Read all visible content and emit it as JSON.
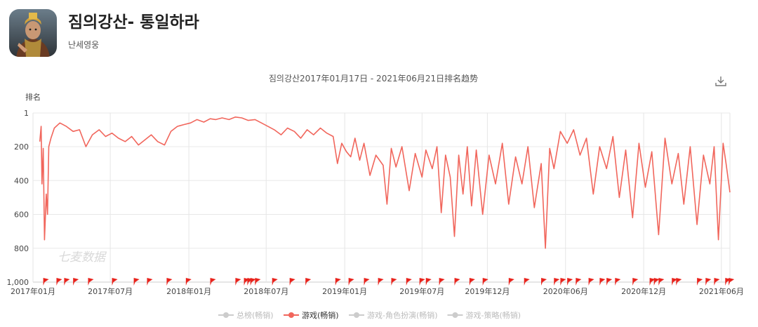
{
  "app": {
    "icon": "warrior-portrait-icon",
    "title": "짐의강산- 통일하라",
    "developer": "난세영웅"
  },
  "toolbar": {
    "download_icon": "download-icon"
  },
  "chart_data": {
    "type": "line",
    "title": "짐의강산2017年01月17日 - 2021年06月21日排名趋势",
    "ylabel": "排名",
    "xlabel": "",
    "y_inverted": true,
    "ylim": [
      1,
      1000
    ],
    "yticks": [
      "1",
      "200",
      "400",
      "600",
      "800",
      "1,000"
    ],
    "xticks": [
      "2017年01月",
      "2017年07月",
      "2018年01月",
      "2018年07月",
      "2019年01月",
      "2019年07月",
      "2019年12月",
      "2020年06月",
      "2020年12月",
      "2021年06月"
    ],
    "xtick_dates": [
      "2017-01-01",
      "2017-07-01",
      "2018-01-01",
      "2018-07-01",
      "2019-01-01",
      "2019-07-01",
      "2019-12-01",
      "2020-06-01",
      "2020-12-01",
      "2021-06-01"
    ],
    "date_range": [
      "2017-01-17",
      "2021-06-21"
    ],
    "grid": true,
    "watermark": "七麦数据",
    "legend_position": "bottom",
    "legend": [
      {
        "name": "总榜(畅销)",
        "active": false,
        "color": "#cccccc"
      },
      {
        "name": "游戏(畅销)",
        "active": true,
        "color": "#f1665c"
      },
      {
        "name": "游戏-角色扮演(畅销)",
        "active": false,
        "color": "#cccccc"
      },
      {
        "name": "游戏-策略(畅销)",
        "active": false,
        "color": "#cccccc"
      }
    ],
    "series": [
      {
        "name": "游戏(畅销)",
        "color": "#f1665c",
        "points": [
          [
            "2017-01-17",
            170
          ],
          [
            "2017-01-20",
            80
          ],
          [
            "2017-01-22",
            420
          ],
          [
            "2017-01-25",
            210
          ],
          [
            "2017-01-28",
            750
          ],
          [
            "2017-02-01",
            480
          ],
          [
            "2017-02-04",
            600
          ],
          [
            "2017-02-07",
            200
          ],
          [
            "2017-02-12",
            150
          ],
          [
            "2017-02-20",
            90
          ],
          [
            "2017-03-05",
            60
          ],
          [
            "2017-03-20",
            80
          ],
          [
            "2017-04-05",
            110
          ],
          [
            "2017-04-20",
            100
          ],
          [
            "2017-05-05",
            200
          ],
          [
            "2017-05-20",
            130
          ],
          [
            "2017-06-05",
            100
          ],
          [
            "2017-06-20",
            140
          ],
          [
            "2017-07-05",
            120
          ],
          [
            "2017-07-20",
            150
          ],
          [
            "2017-08-05",
            170
          ],
          [
            "2017-08-20",
            140
          ],
          [
            "2017-09-05",
            190
          ],
          [
            "2017-09-20",
            160
          ],
          [
            "2017-10-05",
            130
          ],
          [
            "2017-10-20",
            170
          ],
          [
            "2017-11-05",
            190
          ],
          [
            "2017-11-20",
            110
          ],
          [
            "2017-12-05",
            80
          ],
          [
            "2017-12-20",
            70
          ],
          [
            "2018-01-05",
            60
          ],
          [
            "2018-01-20",
            40
          ],
          [
            "2018-02-05",
            55
          ],
          [
            "2018-02-20",
            35
          ],
          [
            "2018-03-05",
            40
          ],
          [
            "2018-03-20",
            30
          ],
          [
            "2018-04-05",
            40
          ],
          [
            "2018-04-20",
            25
          ],
          [
            "2018-05-05",
            30
          ],
          [
            "2018-05-20",
            45
          ],
          [
            "2018-06-05",
            40
          ],
          [
            "2018-06-20",
            60
          ],
          [
            "2018-07-05",
            80
          ],
          [
            "2018-07-20",
            100
          ],
          [
            "2018-08-05",
            130
          ],
          [
            "2018-08-20",
            90
          ],
          [
            "2018-09-05",
            110
          ],
          [
            "2018-09-20",
            150
          ],
          [
            "2018-10-05",
            100
          ],
          [
            "2018-10-20",
            130
          ],
          [
            "2018-11-05",
            90
          ],
          [
            "2018-11-20",
            120
          ],
          [
            "2018-12-05",
            140
          ],
          [
            "2018-12-15",
            300
          ],
          [
            "2018-12-25",
            180
          ],
          [
            "2019-01-05",
            230
          ],
          [
            "2019-01-15",
            260
          ],
          [
            "2019-01-25",
            150
          ],
          [
            "2019-02-05",
            280
          ],
          [
            "2019-02-15",
            180
          ],
          [
            "2019-03-01",
            370
          ],
          [
            "2019-03-15",
            250
          ],
          [
            "2019-04-01",
            310
          ],
          [
            "2019-04-10",
            540
          ],
          [
            "2019-04-20",
            210
          ],
          [
            "2019-05-01",
            320
          ],
          [
            "2019-05-15",
            200
          ],
          [
            "2019-06-01",
            460
          ],
          [
            "2019-06-15",
            240
          ],
          [
            "2019-07-01",
            380
          ],
          [
            "2019-07-10",
            220
          ],
          [
            "2019-07-25",
            330
          ],
          [
            "2019-08-05",
            200
          ],
          [
            "2019-08-15",
            590
          ],
          [
            "2019-08-25",
            250
          ],
          [
            "2019-09-05",
            380
          ],
          [
            "2019-09-15",
            730
          ],
          [
            "2019-09-25",
            250
          ],
          [
            "2019-10-05",
            480
          ],
          [
            "2019-10-15",
            200
          ],
          [
            "2019-10-25",
            550
          ],
          [
            "2019-11-05",
            220
          ],
          [
            "2019-11-20",
            600
          ],
          [
            "2019-12-05",
            250
          ],
          [
            "2019-12-20",
            420
          ],
          [
            "2020-01-05",
            180
          ],
          [
            "2020-01-20",
            540
          ],
          [
            "2020-02-05",
            260
          ],
          [
            "2020-02-20",
            420
          ],
          [
            "2020-03-05",
            200
          ],
          [
            "2020-03-20",
            560
          ],
          [
            "2020-04-05",
            300
          ],
          [
            "2020-04-15",
            800
          ],
          [
            "2020-04-25",
            210
          ],
          [
            "2020-05-05",
            330
          ],
          [
            "2020-05-20",
            110
          ],
          [
            "2020-06-05",
            180
          ],
          [
            "2020-06-20",
            100
          ],
          [
            "2020-07-05",
            250
          ],
          [
            "2020-07-20",
            150
          ],
          [
            "2020-08-05",
            480
          ],
          [
            "2020-08-20",
            200
          ],
          [
            "2020-09-05",
            330
          ],
          [
            "2020-09-20",
            140
          ],
          [
            "2020-10-05",
            500
          ],
          [
            "2020-10-20",
            220
          ],
          [
            "2020-11-05",
            620
          ],
          [
            "2020-11-20",
            180
          ],
          [
            "2020-12-05",
            440
          ],
          [
            "2020-12-20",
            230
          ],
          [
            "2021-01-05",
            720
          ],
          [
            "2021-01-20",
            150
          ],
          [
            "2021-02-05",
            420
          ],
          [
            "2021-02-20",
            240
          ],
          [
            "2021-03-05",
            540
          ],
          [
            "2021-03-20",
            200
          ],
          [
            "2021-04-05",
            660
          ],
          [
            "2021-04-20",
            250
          ],
          [
            "2021-05-05",
            420
          ],
          [
            "2021-05-15",
            200
          ],
          [
            "2021-05-25",
            750
          ],
          [
            "2021-06-05",
            180
          ],
          [
            "2021-06-12",
            300
          ],
          [
            "2021-06-21",
            470
          ]
        ]
      }
    ],
    "event_markers": [
      "2017-01-25",
      "2017-02-25",
      "2017-03-15",
      "2017-04-05",
      "2017-05-10",
      "2017-07-05",
      "2017-08-25",
      "2017-09-25",
      "2017-11-10",
      "2017-12-25",
      "2018-02-20",
      "2018-04-20",
      "2018-05-10",
      "2018-05-18",
      "2018-05-25",
      "2018-06-05",
      "2018-07-15",
      "2018-08-25",
      "2018-10-01",
      "2018-12-10",
      "2019-01-10",
      "2019-02-15",
      "2019-03-20",
      "2019-04-20",
      "2019-05-25",
      "2019-06-25",
      "2019-07-10",
      "2019-08-10",
      "2019-09-15",
      "2019-10-20",
      "2019-11-20",
      "2020-01-20",
      "2020-02-25",
      "2020-04-05",
      "2020-05-05",
      "2020-05-20",
      "2020-06-05",
      "2020-06-25",
      "2020-07-25",
      "2020-08-20",
      "2020-09-05",
      "2020-09-25",
      "2020-11-05",
      "2020-12-15",
      "2020-12-25",
      "2021-01-05",
      "2021-02-05",
      "2021-02-15",
      "2021-04-05",
      "2021-04-25",
      "2021-05-15",
      "2021-06-10",
      "2021-06-18"
    ]
  }
}
